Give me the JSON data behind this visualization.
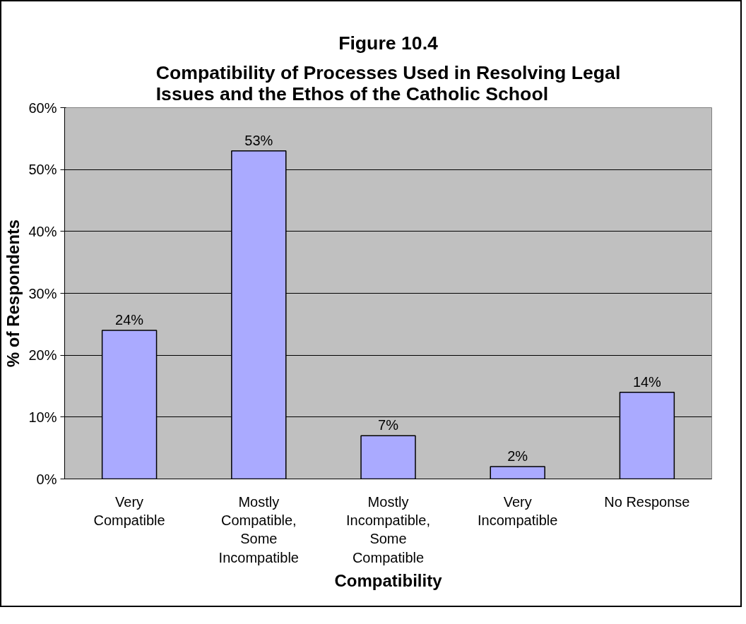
{
  "chart_data": {
    "type": "bar",
    "title": "Figure 10.4",
    "subtitle": "Compatibility of Processes Used in Resolving Legal\nIssues and the Ethos of the Catholic School",
    "xlabel": "Compatibility",
    "ylabel": "% of Respondents",
    "categories": [
      "Very\nCompatible",
      "Mostly\nCompatible,\nSome\nIncompatible",
      "Mostly\nIncompatible,\nSome\nCompatible",
      "Very\nIncompatible",
      "No Response"
    ],
    "values": [
      24,
      53,
      7,
      2,
      14
    ],
    "color": "#aaaaff",
    "value_labels": [
      "24%",
      "53%",
      "7%",
      "2%",
      "14%"
    ],
    "ylim": [
      0,
      60
    ],
    "yticks": [
      {
        "value": 0,
        "label": "0%"
      },
      {
        "value": 10,
        "label": "10%"
      },
      {
        "value": 20,
        "label": "20%"
      },
      {
        "value": 30,
        "label": "30%"
      },
      {
        "value": 40,
        "label": "40%"
      },
      {
        "value": 50,
        "label": "50%"
      },
      {
        "value": 60,
        "label": "60%"
      }
    ],
    "grid": "y"
  }
}
